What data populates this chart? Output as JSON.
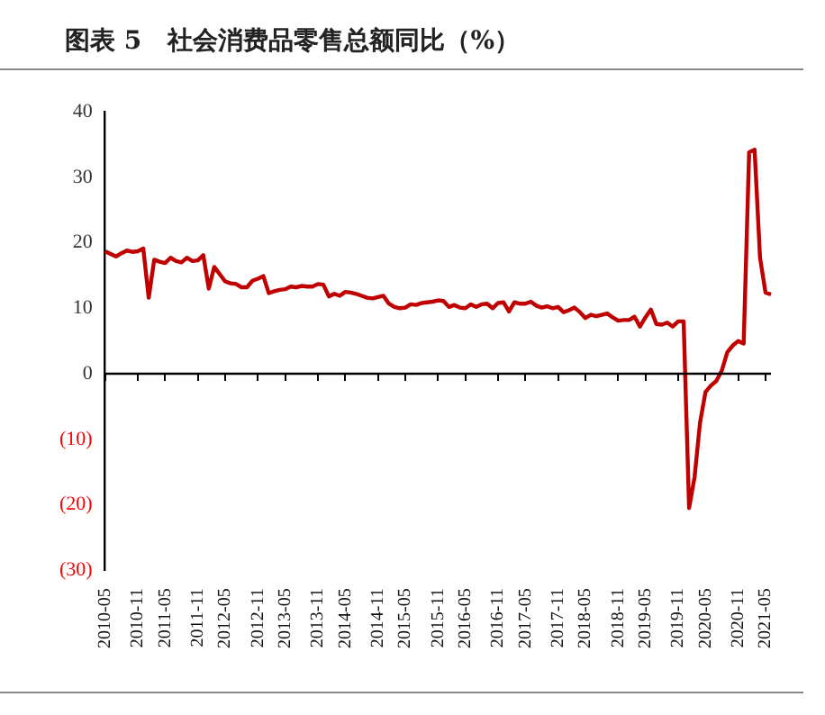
{
  "chart_data": {
    "type": "line",
    "title": "图表 5   社会消费品零售总额同比（%）",
    "categories": [
      "2010-05",
      null,
      null,
      null,
      null,
      null,
      "2010-11",
      null,
      null,
      null,
      null,
      "2011-05",
      null,
      null,
      null,
      null,
      null,
      "2011-11",
      null,
      null,
      null,
      null,
      "2012-05",
      null,
      null,
      null,
      null,
      null,
      "2012-11",
      null,
      null,
      null,
      null,
      "2013-05",
      null,
      null,
      null,
      null,
      null,
      "2013-11",
      null,
      null,
      null,
      null,
      "2014-05",
      null,
      null,
      null,
      null,
      null,
      "2014-11",
      null,
      null,
      null,
      null,
      "2015-05",
      null,
      null,
      null,
      null,
      null,
      "2015-11",
      null,
      null,
      null,
      null,
      "2016-05",
      null,
      null,
      null,
      null,
      null,
      "2016-11",
      null,
      null,
      null,
      null,
      "2017-05",
      null,
      null,
      null,
      null,
      null,
      "2017-11",
      null,
      null,
      null,
      null,
      "2018-05",
      null,
      null,
      null,
      null,
      null,
      "2018-11",
      null,
      null,
      null,
      null,
      "2019-05",
      null,
      null,
      null,
      null,
      null,
      "2019-11",
      null,
      null,
      null,
      null,
      "2020-05",
      null,
      null,
      null,
      null,
      null,
      "2020-11",
      null,
      null,
      null,
      null,
      "2021-05",
      null
    ],
    "series": [
      {
        "color": "#c00000",
        "values": [
          18.7,
          18.3,
          17.9,
          18.4,
          18.8,
          18.6,
          18.7,
          19.1,
          11.6,
          17.4,
          17.1,
          16.9,
          17.7,
          17.2,
          17.0,
          17.7,
          17.2,
          17.3,
          18.1,
          13.0,
          16.3,
          15.2,
          14.1,
          13.8,
          13.7,
          13.2,
          13.2,
          14.2,
          14.5,
          14.9,
          12.3,
          12.6,
          12.8,
          12.9,
          13.3,
          13.2,
          13.4,
          13.3,
          13.3,
          13.7,
          13.6,
          11.8,
          12.2,
          11.9,
          12.5,
          12.4,
          12.2,
          11.9,
          11.6,
          11.5,
          11.7,
          11.9,
          10.7,
          10.2,
          10.0,
          10.1,
          10.6,
          10.5,
          10.8,
          10.9,
          11.0,
          11.2,
          11.1,
          10.2,
          10.5,
          10.1,
          10.0,
          10.6,
          10.2,
          10.6,
          10.7,
          10.0,
          10.8,
          10.9,
          9.5,
          10.9,
          10.7,
          10.7,
          11.0,
          10.4,
          10.1,
          10.3,
          10.0,
          10.2,
          9.4,
          9.7,
          10.1,
          9.4,
          8.5,
          9.0,
          8.8,
          9.0,
          9.2,
          8.6,
          8.1,
          8.2,
          8.2,
          8.7,
          7.2,
          8.6,
          9.8,
          7.6,
          7.5,
          7.8,
          7.2,
          8.0,
          8.0,
          -20.5,
          -15.8,
          -7.5,
          -2.8,
          -1.8,
          -1.1,
          0.5,
          3.3,
          4.3,
          5.0,
          4.6,
          33.8,
          34.2,
          17.7,
          12.4,
          12.1
        ]
      }
    ],
    "ylim": [
      -30,
      40
    ],
    "yticks": [
      {
        "value": -30,
        "label": "(30)"
      },
      {
        "value": -20,
        "label": "(20)"
      },
      {
        "value": -10,
        "label": "(10)"
      },
      0,
      10,
      20,
      30,
      40
    ],
    "ref_lines": [
      {
        "axis": "y",
        "value": 0,
        "color": "#000000"
      }
    ],
    "grid": false,
    "legend": false,
    "marker": "none",
    "line_style": "solid"
  }
}
